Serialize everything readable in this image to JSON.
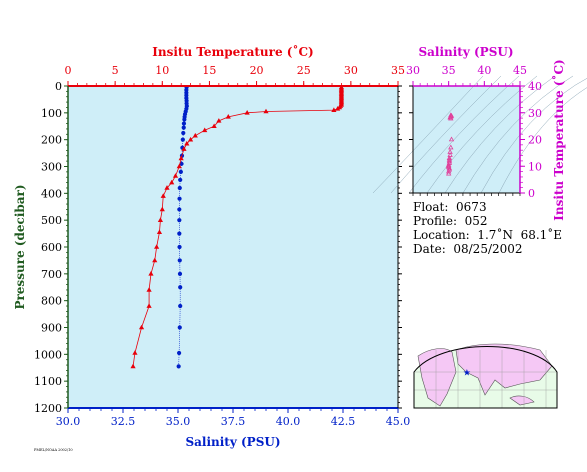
{
  "colors": {
    "temperature": "#e8000b",
    "salinity": "#0020c8",
    "magenta_axis": "#cc00cc",
    "left_axis": "#1f5a1f",
    "plot_bg": "#cfeef8",
    "land": "#f5c8f5",
    "ocean": "#e8fbe8"
  },
  "info": {
    "float": "Float:  0673",
    "profile": "Profile:  052",
    "location": "Location:  1.7˚N  68.1˚E",
    "date": "Date:  08/25/2002"
  },
  "footer_stamp": "PMEL/NOAA 2002/10",
  "chart_data": [
    {
      "type": "line",
      "name": "profile",
      "ylabel": "Pressure (decibar)",
      "ylim": [
        1200,
        0
      ],
      "yticks": [
        0,
        100,
        200,
        300,
        400,
        500,
        600,
        700,
        800,
        900,
        1000,
        1100,
        1200
      ],
      "top_axis": {
        "label": "Insitu Temperature (˚C)",
        "lim": [
          0,
          35
        ],
        "ticks": [
          0,
          5,
          10,
          15,
          20,
          25,
          30,
          35
        ]
      },
      "bottom_axis": {
        "label": "Salinity (PSU)",
        "lim": [
          30,
          45
        ],
        "ticks": [
          "30.0",
          "32.5",
          "35.0",
          "37.5",
          "40.0",
          "42.5",
          "45.0"
        ]
      },
      "series": [
        {
          "name": "temperature",
          "x_axis": "top",
          "points": [
            [
              29.0,
              5
            ],
            [
              29.0,
              10
            ],
            [
              29.0,
              15
            ],
            [
              29.0,
              20
            ],
            [
              29.0,
              25
            ],
            [
              29.0,
              30
            ],
            [
              29.0,
              35
            ],
            [
              29.0,
              40
            ],
            [
              29.0,
              45
            ],
            [
              29.0,
              50
            ],
            [
              29.0,
              55
            ],
            [
              29.0,
              60
            ],
            [
              29.0,
              65
            ],
            [
              29.0,
              70
            ],
            [
              28.9,
              75
            ],
            [
              28.8,
              80
            ],
            [
              28.6,
              85
            ],
            [
              28.2,
              90
            ],
            [
              21.0,
              95
            ],
            [
              19.0,
              100
            ],
            [
              17.0,
              115
            ],
            [
              16.0,
              130
            ],
            [
              15.5,
              150
            ],
            [
              14.5,
              165
            ],
            [
              13.5,
              185
            ],
            [
              13.0,
              200
            ],
            [
              12.6,
              215
            ],
            [
              12.3,
              235
            ],
            [
              12.0,
              270
            ],
            [
              11.8,
              300
            ],
            [
              11.4,
              335
            ],
            [
              11.0,
              360
            ],
            [
              10.5,
              380
            ],
            [
              10.1,
              410
            ],
            [
              10.0,
              460
            ],
            [
              9.8,
              500
            ],
            [
              9.7,
              545
            ],
            [
              9.4,
              600
            ],
            [
              9.2,
              650
            ],
            [
              8.8,
              700
            ],
            [
              8.6,
              760
            ],
            [
              8.6,
              820
            ],
            [
              7.8,
              900
            ],
            [
              7.1,
              995
            ],
            [
              6.9,
              1045
            ]
          ]
        },
        {
          "name": "salinity",
          "x_axis": "bottom",
          "points": [
            [
              35.39,
              5
            ],
            [
              35.38,
              15
            ],
            [
              35.38,
              25
            ],
            [
              35.38,
              35
            ],
            [
              35.38,
              45
            ],
            [
              35.39,
              55
            ],
            [
              35.39,
              65
            ],
            [
              35.4,
              75
            ],
            [
              35.38,
              85
            ],
            [
              35.35,
              95
            ],
            [
              35.32,
              105
            ],
            [
              35.3,
              115
            ],
            [
              35.29,
              125
            ],
            [
              35.27,
              140
            ],
            [
              35.26,
              155
            ],
            [
              35.24,
              175
            ],
            [
              35.22,
              200
            ],
            [
              35.2,
              230
            ],
            [
              35.18,
              260
            ],
            [
              35.16,
              290
            ],
            [
              35.13,
              320
            ],
            [
              35.1,
              350
            ],
            [
              35.08,
              380
            ],
            [
              35.07,
              420
            ],
            [
              35.06,
              460
            ],
            [
              35.06,
              500
            ],
            [
              35.06,
              550
            ],
            [
              35.07,
              600
            ],
            [
              35.08,
              650
            ],
            [
              35.09,
              700
            ],
            [
              35.1,
              750
            ],
            [
              35.1,
              820
            ],
            [
              35.08,
              900
            ],
            [
              35.05,
              995
            ],
            [
              35.03,
              1045
            ]
          ]
        }
      ]
    },
    {
      "type": "scatter",
      "name": "ts-diagram",
      "xlabel": "Salinity (PSU)",
      "ylabel": "Insitu Temperature (˚C)",
      "xlim": [
        30,
        45
      ],
      "ylim": [
        0,
        40
      ],
      "xticks": [
        30,
        35,
        40,
        45
      ],
      "yticks": [
        0,
        10,
        20,
        30,
        40
      ],
      "points": [
        [
          35.3,
          29.0
        ],
        [
          35.4,
          28.8
        ],
        [
          35.3,
          28.5
        ],
        [
          35.2,
          28.2
        ],
        [
          35.3,
          27.8
        ],
        [
          35.4,
          20.0
        ],
        [
          35.3,
          17.0
        ],
        [
          35.2,
          15.3
        ],
        [
          35.2,
          14.2
        ],
        [
          35.1,
          13.0
        ],
        [
          35.1,
          12.4
        ],
        [
          35.1,
          11.8
        ],
        [
          35.1,
          11.2
        ],
        [
          35.0,
          10.5
        ],
        [
          35.0,
          10.0
        ],
        [
          35.0,
          9.6
        ],
        [
          35.1,
          9.2
        ],
        [
          35.1,
          8.7
        ],
        [
          35.0,
          8.0
        ],
        [
          35.0,
          7.2
        ]
      ]
    }
  ],
  "map": {
    "marker_lon": 68.1,
    "marker_lat": 1.7
  }
}
